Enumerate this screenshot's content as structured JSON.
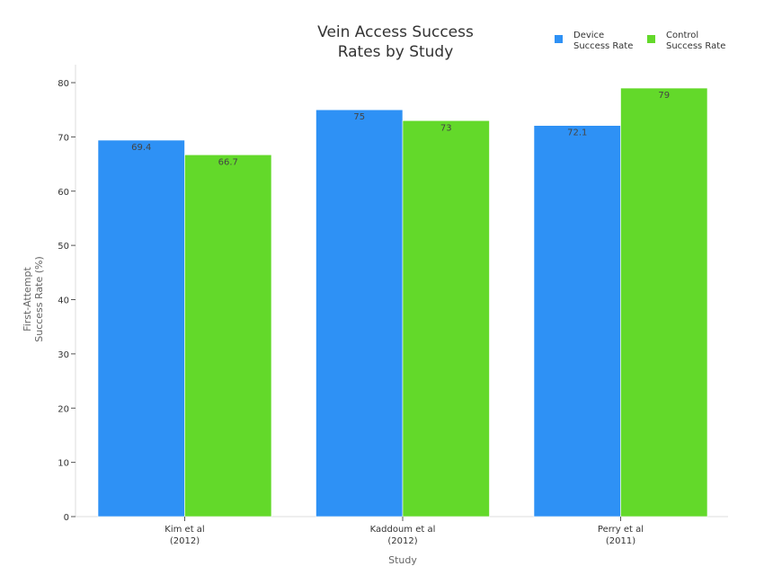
{
  "chart_data": {
    "type": "bar",
    "title": "Vein Access Success Rates by Study",
    "title_lines": [
      "Vein Access Success",
      "Rates by Study"
    ],
    "xlabel": "Study",
    "ylabel_lines": [
      "First-Attempt",
      "Success Rate (%)"
    ],
    "ylabel": "First-Attempt Success Rate (%)",
    "categories": [
      "Kim et al (2012)",
      "Kaddoum et al (2012)",
      "Perry et al (2011)"
    ],
    "category_lines": [
      [
        "Kim et al",
        "(2012)"
      ],
      [
        "Kaddoum et al",
        "(2012)"
      ],
      [
        "Perry et al",
        "(2011)"
      ]
    ],
    "series": [
      {
        "name": "Device Success Rate",
        "legend_lines": [
          "Device",
          "Success Rate"
        ],
        "color": "#2e91f5",
        "values": [
          69.4,
          75,
          72.1
        ]
      },
      {
        "name": "Control Success Rate",
        "legend_lines": [
          "Control",
          "Success Rate"
        ],
        "color": "#63d92a",
        "values": [
          66.7,
          73,
          79
        ]
      }
    ],
    "ylim": [
      0,
      80
    ],
    "yticks": [
      0,
      10,
      20,
      30,
      40,
      50,
      60,
      70,
      80
    ],
    "grid": false,
    "legend_position": "top-right"
  }
}
